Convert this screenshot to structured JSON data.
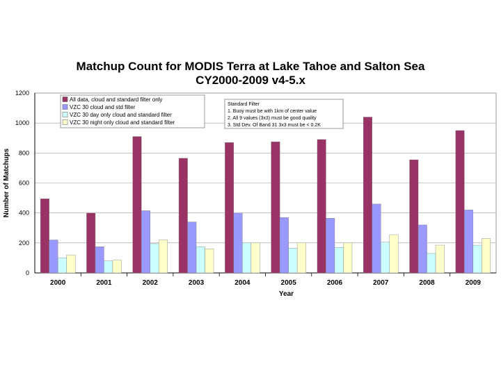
{
  "chart_data": {
    "type": "bar",
    "title": "Matchup Count for MODIS Terra at Lake Tahoe and Salton Sea",
    "subtitle": "CY2000-2009 v4-5.x",
    "xlabel": "Year",
    "ylabel": "Number of Matchups",
    "ylim": [
      0,
      1200
    ],
    "yticks": [
      "0",
      "200",
      "400",
      "600",
      "800",
      "1000",
      "1200"
    ],
    "categories": [
      "2000",
      "2001",
      "2002",
      "2003",
      "2004",
      "2005",
      "2006",
      "2007",
      "2008",
      "2009"
    ],
    "series": [
      {
        "name": "All data, cloud and standard  filter only",
        "color": "#993366",
        "values": [
          495,
          400,
          910,
          765,
          870,
          875,
          890,
          1040,
          755,
          950
        ]
      },
      {
        "name": "VZC 30 cloud and std filter",
        "color": "#9999ff",
        "values": [
          220,
          175,
          415,
          340,
          400,
          370,
          365,
          460,
          320,
          420
        ]
      },
      {
        "name": "VZC 30 day only cloud and standard filter",
        "color": "#ccffff",
        "values": [
          100,
          80,
          195,
          175,
          200,
          165,
          170,
          205,
          130,
          185
        ]
      },
      {
        "name": "VZC 30 night only cloud and standard filter",
        "color": "#ffffcc",
        "values": [
          120,
          85,
          220,
          160,
          200,
          200,
          200,
          255,
          185,
          230
        ]
      }
    ],
    "legend_position": "top-left",
    "annotation": {
      "title": "Standard Filter",
      "lines": [
        "1. Buoy must be with 1km of center value",
        "2. All 9 values (3x3) must be good quality",
        "3. Std Dev. Of Band 31 3x3 must be < 0.2K"
      ]
    },
    "grid": true
  }
}
